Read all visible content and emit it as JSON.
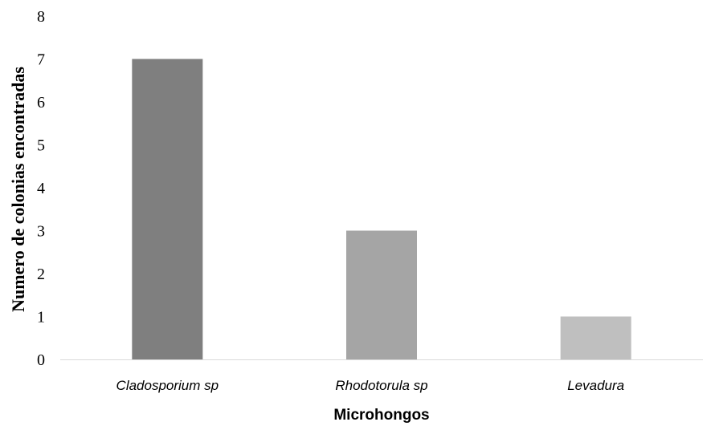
{
  "chart_data": {
    "type": "bar",
    "categories": [
      "Cladosporium sp",
      "Rhodotorula sp",
      "Levadura"
    ],
    "values": [
      7,
      3,
      1
    ],
    "bar_colors": [
      "#7f7f7f",
      "#a5a5a5",
      "#bfbfbf"
    ],
    "xlabel": "Microhongos",
    "ylabel": "Numero de colonias encontradas",
    "ylim": [
      0,
      8
    ],
    "yticks": [
      "0",
      "1",
      "2",
      "3",
      "4",
      "5",
      "6",
      "7",
      "8"
    ],
    "axis_color": "#d9d9d9",
    "grid": false,
    "legend": "none"
  }
}
